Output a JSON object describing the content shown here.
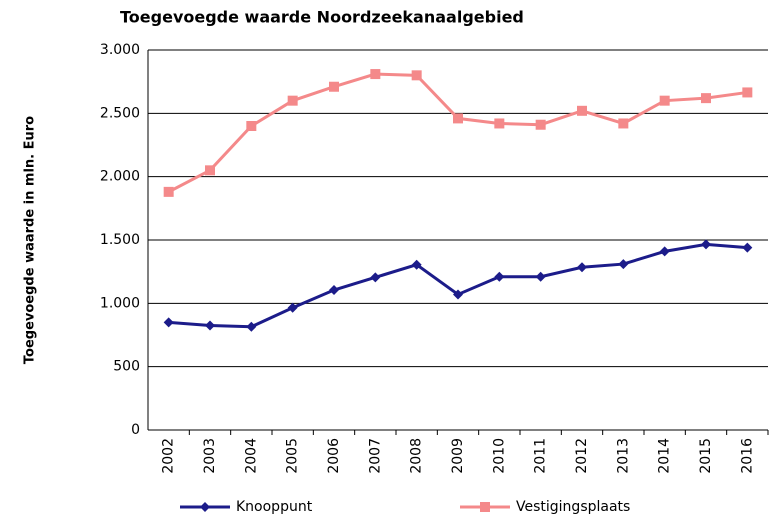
{
  "chart_data": {
    "type": "line",
    "title": "Toegevoegde waarde Noordzeekanaalgebied",
    "y_label": "Toegevoegde waarde in mln. Euro",
    "categories": [
      "2002",
      "2003",
      "2004",
      "2005",
      "2006",
      "2007",
      "2008",
      "2009",
      "2010",
      "2011",
      "2012",
      "2013",
      "2014",
      "2015",
      "2016"
    ],
    "series": [
      {
        "name": "Knooppunt",
        "color": "#1c1c8a",
        "marker": "diamond",
        "values": [
          850,
          825,
          815,
          965,
          1105,
          1205,
          1305,
          1070,
          1210,
          1210,
          1285,
          1310,
          1410,
          1465,
          1440
        ]
      },
      {
        "name": "Vestigingsplaats",
        "color": "#f4898a",
        "marker": "square",
        "values": [
          1880,
          2050,
          2400,
          2600,
          2710,
          2810,
          2800,
          2460,
          2420,
          2410,
          2520,
          2420,
          2600,
          2620,
          2665
        ]
      }
    ],
    "ylim": [
      0,
      3000
    ],
    "yticks": [
      0,
      500,
      {
        "value": 1000,
        "label": "1.000"
      },
      {
        "value": 1500,
        "label": "1.500"
      },
      {
        "value": 2000,
        "label": "2.000"
      },
      {
        "value": 2500,
        "label": "2.500"
      },
      {
        "value": 3000,
        "label": "3.000"
      }
    ],
    "grid": true,
    "legend": "bottom"
  }
}
